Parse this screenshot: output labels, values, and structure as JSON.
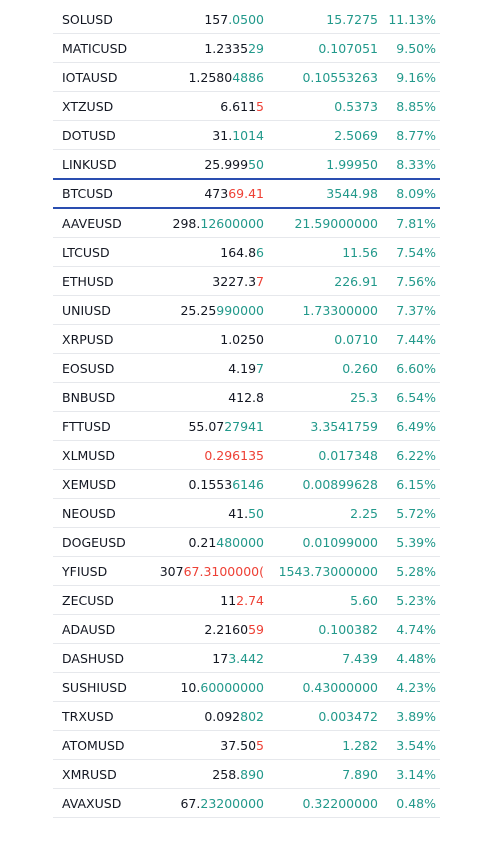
{
  "colors": {
    "up": "#22998b",
    "down": "#ee4035",
    "text": "#131722",
    "highlight_border": "#2a4eb0"
  },
  "rows": [
    {
      "symbol": "SOLUSD",
      "last_base": "157",
      "last_flash": ".0500",
      "last_dir": "up",
      "change": "15.7275",
      "change_pct": "11.13%",
      "highlighted": false
    },
    {
      "symbol": "MATICUSD",
      "last_base": "1.2335",
      "last_flash": "29",
      "last_dir": "up",
      "change": "0.107051",
      "change_pct": "9.50%",
      "highlighted": false
    },
    {
      "symbol": "IOTAUSD",
      "last_base": "1.2580",
      "last_flash": "4886",
      "last_dir": "up",
      "change": "0.10553263",
      "change_pct": "9.16%",
      "highlighted": false
    },
    {
      "symbol": "XTZUSD",
      "last_base": "6.611",
      "last_flash": "5",
      "last_dir": "down",
      "change": "0.5373",
      "change_pct": "8.85%",
      "highlighted": false
    },
    {
      "symbol": "DOTUSD",
      "last_base": "31.",
      "last_flash": "1014",
      "last_dir": "up",
      "change": "2.5069",
      "change_pct": "8.77%",
      "highlighted": false
    },
    {
      "symbol": "LINKUSD",
      "last_base": "25.999",
      "last_flash": "50",
      "last_dir": "up",
      "change": "1.99950",
      "change_pct": "8.33%",
      "highlighted": false
    },
    {
      "symbol": "BTCUSD",
      "last_base": "473",
      "last_flash": "69.41",
      "last_dir": "down",
      "change": "3544.98",
      "change_pct": "8.09%",
      "highlighted": true
    },
    {
      "symbol": "AAVEUSD",
      "last_base": "298.",
      "last_flash": "12600000",
      "last_dir": "up",
      "change": "21.59000000",
      "change_pct": "7.81%",
      "highlighted": false
    },
    {
      "symbol": "LTCUSD",
      "last_base": "164.8",
      "last_flash": "6",
      "last_dir": "up",
      "change": "11.56",
      "change_pct": "7.54%",
      "highlighted": false
    },
    {
      "symbol": "ETHUSD",
      "last_base": "3227.3",
      "last_flash": "7",
      "last_dir": "down",
      "change": "226.91",
      "change_pct": "7.56%",
      "highlighted": false
    },
    {
      "symbol": "UNIUSD",
      "last_base": "25.25",
      "last_flash": "990000",
      "last_dir": "up",
      "change": "1.73300000",
      "change_pct": "7.37%",
      "highlighted": false
    },
    {
      "symbol": "XRPUSD",
      "last_base": "1.0250",
      "last_flash": "",
      "last_dir": "up",
      "change": "0.0710",
      "change_pct": "7.44%",
      "highlighted": false
    },
    {
      "symbol": "EOSUSD",
      "last_base": "4.19",
      "last_flash": "7",
      "last_dir": "up",
      "change": "0.260",
      "change_pct": "6.60%",
      "highlighted": false
    },
    {
      "symbol": "BNBUSD",
      "last_base": "412.8",
      "last_flash": "",
      "last_dir": "up",
      "change": "25.3",
      "change_pct": "6.54%",
      "highlighted": false
    },
    {
      "symbol": "FTTUSD",
      "last_base": "55.07",
      "last_flash": "27941",
      "last_dir": "up",
      "change": "3.3541759",
      "change_pct": "6.49%",
      "highlighted": false
    },
    {
      "symbol": "XLMUSD",
      "last_base": "",
      "last_flash": "0.296135",
      "last_dir": "down",
      "change": "0.017348",
      "change_pct": "6.22%",
      "highlighted": false
    },
    {
      "symbol": "XEMUSD",
      "last_base": "0.1553",
      "last_flash": "6146",
      "last_dir": "up",
      "change": "0.00899628",
      "change_pct": "6.15%",
      "highlighted": false
    },
    {
      "symbol": "NEOUSD",
      "last_base": "41.",
      "last_flash": "50",
      "last_dir": "up",
      "change": "2.25",
      "change_pct": "5.72%",
      "highlighted": false
    },
    {
      "symbol": "DOGEUSD",
      "last_base": "0.21",
      "last_flash": "480000",
      "last_dir": "up",
      "change": "0.01099000",
      "change_pct": "5.39%",
      "highlighted": false
    },
    {
      "symbol": "YFIUSD",
      "last_base": "307",
      "last_flash": "67.3100000(",
      "last_dir": "down",
      "change": "1543.73000000",
      "change_pct": "5.28%",
      "highlighted": false
    },
    {
      "symbol": "ZECUSD",
      "last_base": "11",
      "last_flash": "2.74",
      "last_dir": "down",
      "change": "5.60",
      "change_pct": "5.23%",
      "highlighted": false
    },
    {
      "symbol": "ADAUSD",
      "last_base": "2.2160",
      "last_flash": "59",
      "last_dir": "down",
      "change": "0.100382",
      "change_pct": "4.74%",
      "highlighted": false
    },
    {
      "symbol": "DASHUSD",
      "last_base": "17",
      "last_flash": "3.442",
      "last_dir": "up",
      "change": "7.439",
      "change_pct": "4.48%",
      "highlighted": false
    },
    {
      "symbol": "SUSHIUSD",
      "last_base": "10.",
      "last_flash": "60000000",
      "last_dir": "up",
      "change": "0.43000000",
      "change_pct": "4.23%",
      "highlighted": false
    },
    {
      "symbol": "TRXUSD",
      "last_base": "0.092",
      "last_flash": "802",
      "last_dir": "up",
      "change": "0.003472",
      "change_pct": "3.89%",
      "highlighted": false
    },
    {
      "symbol": "ATOMUSD",
      "last_base": "37.50",
      "last_flash": "5",
      "last_dir": "down",
      "change": "1.282",
      "change_pct": "3.54%",
      "highlighted": false
    },
    {
      "symbol": "XMRUSD",
      "last_base": "258.",
      "last_flash": "890",
      "last_dir": "up",
      "change": "7.890",
      "change_pct": "3.14%",
      "highlighted": false
    },
    {
      "symbol": "AVAXUSD",
      "last_base": "67.",
      "last_flash": "23200000",
      "last_dir": "up",
      "change": "0.32200000",
      "change_pct": "0.48%",
      "highlighted": false
    }
  ]
}
